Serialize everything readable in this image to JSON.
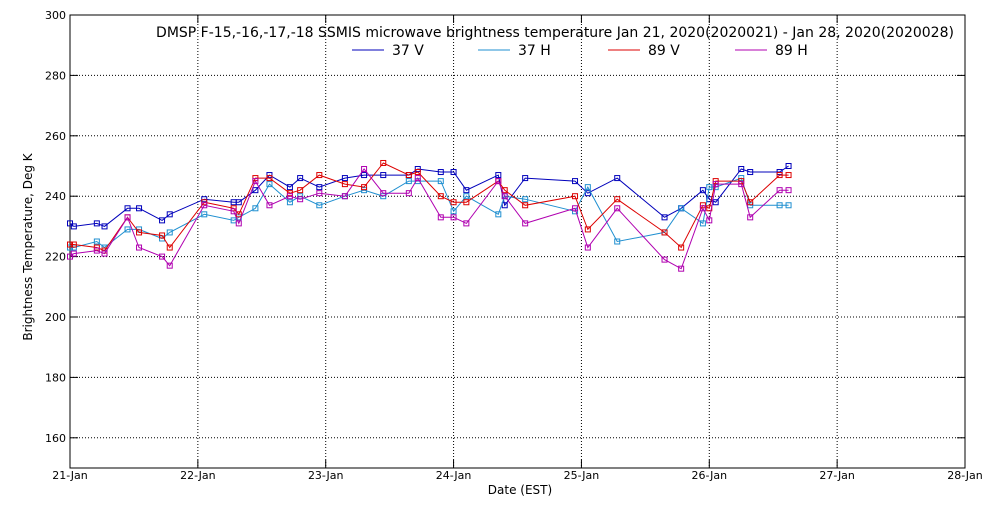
{
  "chart_data": {
    "type": "line",
    "title": "DMSP F-15,-16,-17,-18 SSMIS microwave brightness temperature Jan 21, 2020(2020021) - Jan 28, 2020(2020028)",
    "xlabel": "Date (EST)",
    "ylabel": "Brightness Temperature, Deg K",
    "xlim": [
      0,
      7
    ],
    "ylim": [
      150,
      300
    ],
    "grid": true,
    "legend_position": "top-center",
    "x_tick_values": [
      0,
      1,
      2,
      3,
      4,
      5,
      6,
      7
    ],
    "x_tick_labels": [
      "21-Jan",
      "22-Jan",
      "23-Jan",
      "24-Jan",
      "25-Jan",
      "26-Jan",
      "27-Jan",
      "28-Jan"
    ],
    "y_tick_values": [
      160,
      180,
      200,
      220,
      240,
      260,
      280,
      300
    ],
    "y_tick_labels": [
      "160",
      "180",
      "200",
      "220",
      "240",
      "260",
      "280",
      "300"
    ],
    "x": [
      0.0,
      0.03,
      0.21,
      0.27,
      0.45,
      0.54,
      0.72,
      0.78,
      1.05,
      1.28,
      1.32,
      1.45,
      1.56,
      1.72,
      1.8,
      1.95,
      2.15,
      2.3,
      2.45,
      2.65,
      2.72,
      2.9,
      3.0,
      3.1,
      3.35,
      3.4,
      3.56,
      3.95,
      4.05,
      4.28,
      4.65,
      4.78,
      4.95,
      5.0,
      5.05,
      5.25,
      5.32,
      5.55,
      5.62
    ],
    "series": [
      {
        "name": "37 V",
        "color": "#0000bb",
        "values": [
          231,
          230,
          231,
          230,
          236,
          236,
          232,
          234,
          239,
          238,
          238,
          242,
          247,
          243,
          246,
          243,
          246,
          247,
          247,
          247,
          249,
          248,
          248,
          242,
          247,
          237,
          246,
          245,
          241,
          246,
          233,
          236,
          242,
          239,
          238,
          249,
          248,
          248,
          250
        ]
      },
      {
        "name": "37 H",
        "color": "#1f8fd0",
        "values": [
          223,
          223,
          225,
          223,
          229,
          229,
          226,
          228,
          234,
          232,
          233,
          236,
          244,
          238,
          240,
          237,
          240,
          242,
          240,
          245,
          245,
          245,
          235,
          240,
          234,
          240,
          239,
          235,
          243,
          225,
          228,
          236,
          231,
          243,
          243,
          246,
          237,
          237,
          237
        ]
      },
      {
        "name": "89 V",
        "color": "#dd0000",
        "values": [
          224,
          224,
          223,
          222,
          233,
          228,
          227,
          223,
          238,
          236,
          234,
          246,
          246,
          241,
          242,
          247,
          244,
          243,
          251,
          247,
          248,
          240,
          238,
          238,
          245,
          242,
          237,
          240,
          229,
          239,
          228,
          223,
          237,
          236,
          245,
          245,
          238,
          247,
          247
        ]
      },
      {
        "name": "89 H",
        "color": "#b000b0",
        "values": [
          220,
          221,
          222,
          221,
          233,
          223,
          220,
          217,
          237,
          235,
          231,
          245,
          237,
          240,
          239,
          241,
          240,
          249,
          241,
          241,
          246,
          233,
          233,
          231,
          245,
          240,
          231,
          236,
          223,
          236,
          219,
          216,
          236,
          232,
          244,
          244,
          233,
          242,
          242
        ]
      }
    ]
  }
}
